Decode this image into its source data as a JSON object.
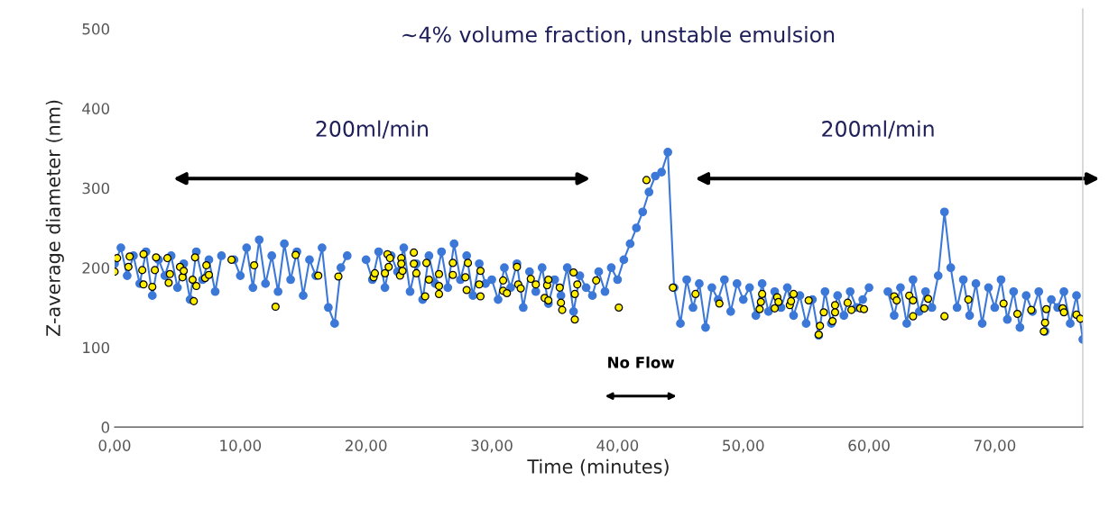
{
  "chart_data": {
    "type": "line",
    "title": "~4% volume fraction, unstable emulsion",
    "xlabel": "Time (minutes)",
    "ylabel": "Z-average diameter (nm)",
    "xlim": [
      0,
      77
    ],
    "xticks": [
      {
        "value": 0,
        "label": "0,00"
      },
      {
        "value": 10,
        "label": "10,00"
      },
      {
        "value": 20,
        "label": "20,00"
      },
      {
        "value": 30,
        "label": "30,00"
      },
      {
        "value": 40,
        "label": "40,00"
      },
      {
        "value": 50,
        "label": "50,00"
      },
      {
        "value": 60,
        "label": "60,00"
      },
      {
        "value": 70,
        "label": "70,00"
      }
    ],
    "ylim": [
      0,
      525
    ],
    "yticks": [
      0,
      100,
      200,
      300,
      400,
      500
    ],
    "grid": false,
    "legend": false,
    "marker": "circle",
    "line_style": "solid",
    "annotations": [
      "200ml/min",
      "No Flow",
      "200ml/min"
    ],
    "series": [
      {
        "color": "#3c78d8",
        "x": [
          0,
          0.5,
          1,
          1.5,
          2,
          2.5,
          3,
          3.5,
          4,
          4.5,
          5,
          5.5,
          6,
          6.5,
          7,
          7.5,
          8,
          8.5,
          9,
          9.5,
          10,
          10.5,
          11,
          11.5,
          12,
          12.5,
          13,
          13.5,
          14,
          14.5,
          15,
          15.5,
          16,
          16.5,
          17,
          17.5,
          18,
          18.5,
          19,
          19.5,
          20,
          20.5,
          21,
          21.5,
          22,
          22.5,
          23,
          23.5,
          24,
          24.5,
          25,
          25.5,
          26,
          26.5,
          27,
          27.5,
          28,
          28.5,
          29,
          29.5,
          30,
          30.5,
          31,
          31.5,
          32,
          32.5,
          33,
          33.5,
          34,
          34.5,
          35,
          35.5,
          36,
          36.5,
          37,
          37.5,
          38,
          38.5,
          39,
          39.5,
          40,
          40.5,
          41,
          41.5,
          42,
          42.5,
          43,
          43.5,
          44,
          44.5,
          45,
          45.5,
          46,
          46.5,
          47,
          47.5,
          48,
          48.5,
          49,
          49.5,
          50,
          50.5,
          51,
          51.5,
          52,
          52.5,
          53,
          53.5,
          54,
          54.5,
          55,
          55.5,
          56,
          56.5,
          57,
          57.5,
          58,
          58.5,
          59,
          59.5,
          60,
          60.5,
          61,
          61.5,
          62,
          62.5,
          63,
          63.5,
          64,
          64.5,
          65,
          65.5,
          66,
          66.5,
          67,
          67.5,
          68,
          68.5,
          69,
          69.5,
          70,
          70.5,
          71,
          71.5,
          72,
          72.5,
          73,
          73.5,
          74,
          74.5,
          75,
          75.5,
          76,
          76.5,
          77
        ],
        "values": [
          205,
          225,
          190,
          215,
          180,
          220,
          165,
          210,
          190,
          215,
          175,
          205,
          160,
          220,
          185,
          210,
          170,
          215,
          null,
          210,
          190,
          225,
          175,
          235,
          180,
          215,
          170,
          230,
          185,
          220,
          165,
          210,
          190,
          225,
          150,
          130,
          200,
          215,
          null,
          null,
          210,
          185,
          220,
          175,
          215,
          195,
          225,
          170,
          205,
          160,
          215,
          180,
          220,
          175,
          230,
          185,
          215,
          165,
          205,
          180,
          185,
          160,
          200,
          175,
          205,
          150,
          195,
          170,
          200,
          155,
          185,
          165,
          200,
          145,
          190,
          175,
          165,
          195,
          170,
          200,
          185,
          210,
          230,
          250,
          270,
          295,
          315,
          320,
          345,
          175,
          130,
          185,
          150,
          180,
          125,
          175,
          160,
          185,
          145,
          180,
          160,
          175,
          140,
          180,
          145,
          170,
          150,
          175,
          140,
          165,
          130,
          160,
          115,
          170,
          130,
          165,
          140,
          170,
          150,
          160,
          175,
          null,
          null,
          170,
          140,
          175,
          130,
          185,
          145,
          170,
          150,
          190,
          270,
          200,
          150,
          185,
          140,
          180,
          130,
          175,
          150,
          185,
          135,
          170,
          125,
          165,
          145,
          170,
          120,
          160,
          150,
          170,
          130,
          165,
          110
        ]
      },
      {
        "type": "scatter",
        "color": "#ffee00",
        "x": [
          0,
          0.2,
          1.1,
          1.2,
          2.2,
          2.3,
          2.3,
          3.0,
          3.2,
          3.3,
          4.2,
          4.3,
          4.4,
          5.2,
          5.4,
          5.5,
          6.2,
          6.3,
          6.4,
          6.5,
          7.2,
          7.3,
          7.5,
          9.3,
          11.1,
          12.8,
          14.4,
          16.2,
          17.8,
          20.6,
          20.7,
          21.5,
          21.7,
          21.8,
          21.9,
          22.7,
          22.8,
          22.8,
          22.9,
          23.8,
          23.8,
          24.0,
          24.7,
          24.8,
          25.0,
          25.8,
          25.8,
          25.8,
          26.9,
          26.9,
          27.9,
          28.0,
          28.1,
          29.0,
          29.1,
          29.1,
          30.9,
          30.9,
          31.2,
          32.0,
          32.1,
          32.3,
          33.1,
          33.5,
          34.2,
          34.4,
          34.5,
          34.5,
          35.4,
          35.5,
          35.6,
          36.5,
          36.6,
          36.6,
          36.8,
          38.3,
          40.1,
          42.3,
          44.4,
          46.2,
          48.1,
          51.3,
          51.4,
          51.5,
          52.5,
          52.7,
          52.8,
          53.7,
          53.8,
          54.0,
          55.2,
          56.0,
          56.1,
          56.4,
          57.1,
          57.3,
          57.3,
          58.3,
          58.6,
          59.3,
          59.6,
          62.0,
          62.2,
          63.2,
          63.5,
          63.5,
          64.4,
          64.7,
          66.0,
          67.9,
          70.7,
          71.8,
          72.9,
          73.9,
          74.0,
          74.1,
          75.4,
          75.5,
          76.5,
          76.8
        ],
        "values": [
          195,
          212,
          201,
          214,
          197,
          217,
          179,
          176,
          197,
          213,
          212,
          181,
          192,
          201,
          188,
          196,
          185,
          158,
          213,
          177,
          187,
          203,
          191,
          210,
          203,
          151,
          216,
          190,
          189,
          188,
          193,
          193,
          217,
          201,
          212,
          190,
          212,
          205,
          196,
          219,
          205,
          193,
          164,
          206,
          185,
          192,
          177,
          167,
          206,
          191,
          188,
          172,
          206,
          179,
          196,
          164,
          184,
          171,
          168,
          201,
          179,
          174,
          186,
          179,
          162,
          178,
          159,
          185,
          175,
          156,
          147,
          194,
          167,
          135,
          179,
          184,
          150,
          310,
          175,
          167,
          155,
          148,
          157,
          167,
          149,
          163,
          157,
          153,
          158,
          167,
          159,
          116,
          127,
          144,
          133,
          153,
          144,
          156,
          147,
          149,
          148,
          164,
          159,
          165,
          159,
          139,
          149,
          161,
          139,
          160,
          155,
          142,
          147,
          120,
          131,
          148,
          149,
          144,
          141,
          136
        ]
      }
    ]
  }
}
